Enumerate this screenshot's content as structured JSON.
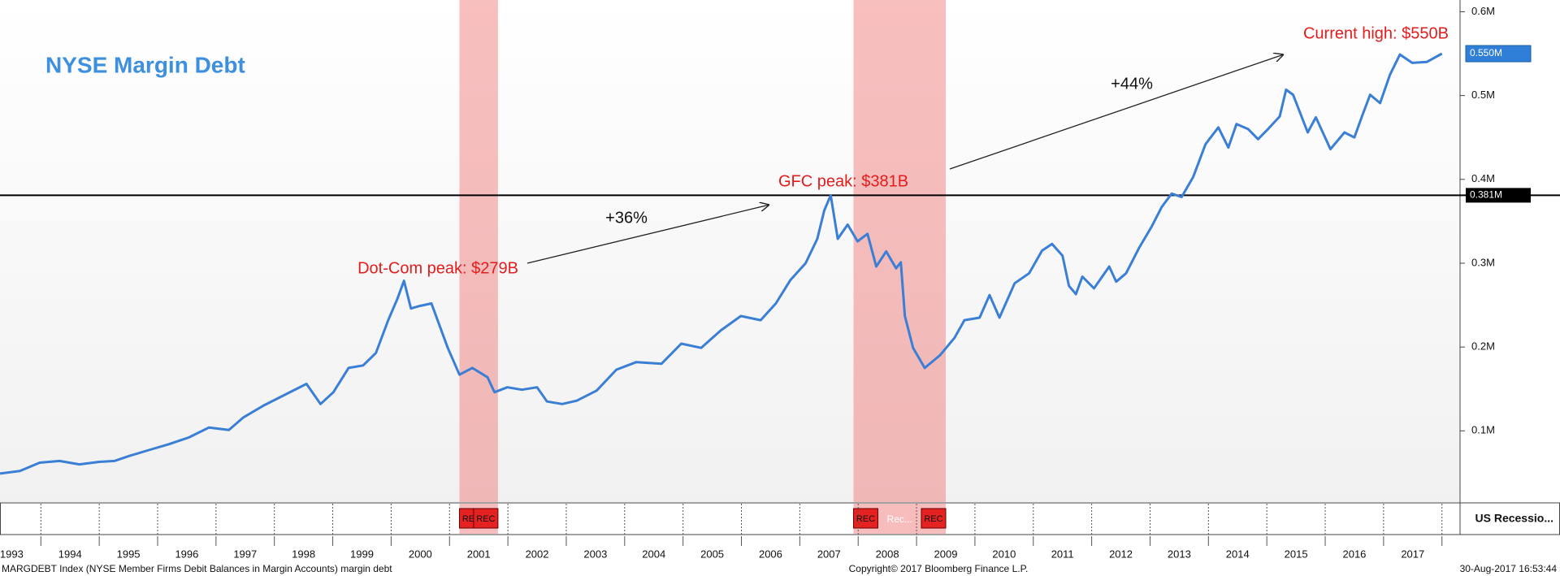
{
  "chart_data": {
    "type": "line",
    "title": "NYSE Margin Debt",
    "color": "#3a7fd5",
    "x": [
      1993.3,
      1993.64,
      1993.98,
      1994.32,
      1994.66,
      1995.0,
      1995.26,
      1995.51,
      1995.85,
      1996.19,
      1996.53,
      1996.88,
      1997.22,
      1997.47,
      1997.81,
      1998.15,
      1998.55,
      1998.79,
      1999.01,
      1999.27,
      1999.52,
      1999.74,
      1999.95,
      2000.11,
      2000.22,
      2000.34,
      2000.49,
      2000.69,
      2000.97,
      2001.17,
      2001.39,
      2001.65,
      2001.77,
      2001.99,
      2002.24,
      2002.5,
      2002.67,
      2002.93,
      2003.18,
      2003.52,
      2003.86,
      2004.2,
      2004.63,
      2004.97,
      2005.31,
      2005.65,
      2005.99,
      2006.33,
      2006.59,
      2006.84,
      2007.1,
      2007.3,
      2007.42,
      2007.53,
      2007.65,
      2007.82,
      2007.99,
      2008.16,
      2008.31,
      2008.48,
      2008.65,
      2008.73,
      2008.8,
      2008.94,
      2009.14,
      2009.4,
      2009.65,
      2009.82,
      2010.08,
      2010.25,
      2010.42,
      2010.68,
      2010.93,
      2011.15,
      2011.32,
      2011.5,
      2011.61,
      2011.73,
      2011.84,
      2012.04,
      2012.3,
      2012.42,
      2012.59,
      2012.81,
      2013.03,
      2013.2,
      2013.37,
      2013.54,
      2013.74,
      2013.95,
      2014.17,
      2014.34,
      2014.48,
      2014.68,
      2014.85,
      2015.02,
      2015.22,
      2015.33,
      2015.45,
      2015.7,
      2015.84,
      2016.09,
      2016.33,
      2016.5,
      2016.64,
      2016.77,
      2016.94,
      2017.11,
      2017.28,
      2017.49,
      2017.74,
      2018.0
    ],
    "values": [
      0.049,
      0.052,
      0.062,
      0.064,
      0.06,
      0.063,
      0.064,
      0.07,
      0.077,
      0.084,
      0.092,
      0.104,
      0.101,
      0.116,
      0.13,
      0.142,
      0.156,
      0.132,
      0.146,
      0.175,
      0.178,
      0.193,
      0.232,
      0.258,
      0.279,
      0.246,
      0.249,
      0.252,
      0.199,
      0.167,
      0.175,
      0.164,
      0.146,
      0.152,
      0.149,
      0.152,
      0.135,
      0.132,
      0.136,
      0.148,
      0.173,
      0.182,
      0.18,
      0.204,
      0.199,
      0.22,
      0.237,
      0.232,
      0.252,
      0.28,
      0.3,
      0.329,
      0.363,
      0.381,
      0.329,
      0.346,
      0.326,
      0.335,
      0.296,
      0.314,
      0.294,
      0.301,
      0.237,
      0.199,
      0.175,
      0.19,
      0.211,
      0.232,
      0.235,
      0.262,
      0.235,
      0.276,
      0.288,
      0.315,
      0.323,
      0.309,
      0.273,
      0.263,
      0.284,
      0.27,
      0.296,
      0.278,
      0.288,
      0.318,
      0.344,
      0.367,
      0.383,
      0.379,
      0.403,
      0.442,
      0.462,
      0.438,
      0.466,
      0.46,
      0.448,
      0.46,
      0.475,
      0.507,
      0.501,
      0.456,
      0.474,
      0.436,
      0.456,
      0.45,
      0.477,
      0.501,
      0.491,
      0.525,
      0.549,
      0.539,
      0.54,
      0.55
    ],
    "last_value_label": "0.550M",
    "xlim": [
      1993.3,
      2018.31
    ],
    "ylim": [
      0.015,
      0.614
    ],
    "yticks": [
      {
        "value": 0.1,
        "label": "0.1M"
      },
      {
        "value": 0.2,
        "label": "0.2M"
      },
      {
        "value": 0.3,
        "label": "0.3M"
      },
      {
        "value": 0.4,
        "label": "0.4M"
      },
      {
        "value": 0.5,
        "label": "0.5M"
      },
      {
        "value": 0.6,
        "label": "0.6M"
      }
    ],
    "xticks": [
      {
        "value": 1993.5,
        "label": "1993"
      },
      {
        "value": 1994.5,
        "label": "1994"
      },
      {
        "value": 1995.5,
        "label": "1995"
      },
      {
        "value": 1996.5,
        "label": "1996"
      },
      {
        "value": 1997.5,
        "label": "1997"
      },
      {
        "value": 1998.5,
        "label": "1998"
      },
      {
        "value": 1999.5,
        "label": "1999"
      },
      {
        "value": 2000.5,
        "label": "2000"
      },
      {
        "value": 2001.5,
        "label": "2001"
      },
      {
        "value": 2002.5,
        "label": "2002"
      },
      {
        "value": 2003.5,
        "label": "2003"
      },
      {
        "value": 2004.5,
        "label": "2004"
      },
      {
        "value": 2005.5,
        "label": "2005"
      },
      {
        "value": 2006.5,
        "label": "2006"
      },
      {
        "value": 2007.5,
        "label": "2007"
      },
      {
        "value": 2008.5,
        "label": "2008"
      },
      {
        "value": 2009.5,
        "label": "2009"
      },
      {
        "value": 2010.5,
        "label": "2010"
      },
      {
        "value": 2011.5,
        "label": "2011"
      },
      {
        "value": 2012.5,
        "label": "2012"
      },
      {
        "value": 2013.5,
        "label": "2013"
      },
      {
        "value": 2014.5,
        "label": "2014"
      },
      {
        "value": 2015.5,
        "label": "2015"
      },
      {
        "value": 2016.5,
        "label": "2016"
      },
      {
        "value": 2017.5,
        "label": "2017"
      }
    ],
    "hline": {
      "value": 0.381,
      "label": "0.381M"
    },
    "recessions": [
      [
        2001.17,
        2001.83
      ],
      [
        2007.92,
        2009.5
      ]
    ],
    "recession_marker": "REC",
    "recession_mid_label": "Rec...",
    "recession_strip_label": "US Recessio...",
    "annotations": [
      {
        "text": "Dot-Com peak: $279B",
        "color": "#e41c1c"
      },
      {
        "text": "GFC peak: $381B",
        "color": "#e41c1c"
      },
      {
        "text": "Current high: $550B",
        "color": "#e41c1c"
      },
      {
        "text": "+36%",
        "color": "#111111"
      },
      {
        "text": "+44%",
        "color": "#111111"
      }
    ],
    "footer": {
      "left": "MARGDEBT Index (NYSE Member Firms Debit Balances in Margin Accounts) margin debt",
      "center": "Copyright© 2017 Bloomberg Finance L.P.",
      "right": "30-Aug-2017 16:53:44"
    }
  }
}
